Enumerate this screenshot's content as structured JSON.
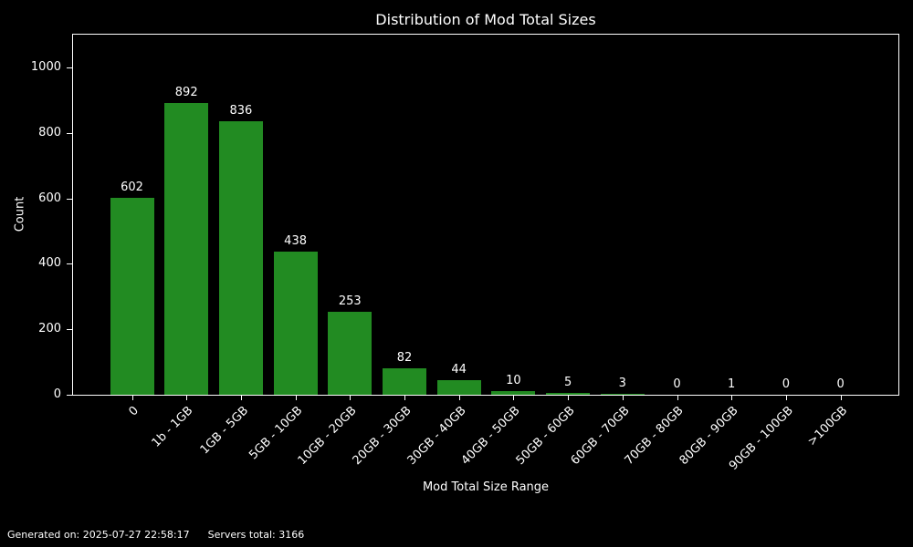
{
  "title": "Distribution of Mod Total Sizes",
  "footer": {
    "generated": "Generated on: 2025-07-27 22:58:17",
    "servers_total": "Servers total: 3166"
  },
  "chart_data": {
    "type": "bar",
    "title": "Distribution of Mod Total Sizes",
    "xlabel": "Mod Total Size Range",
    "ylabel": "Count",
    "categories": [
      "0",
      "1b - 1GB",
      "1GB - 5GB",
      "5GB - 10GB",
      "10GB - 20GB",
      "20GB - 30GB",
      "30GB - 40GB",
      "40GB - 50GB",
      "50GB - 60GB",
      "60GB - 70GB",
      "70GB - 80GB",
      "80GB - 90GB",
      "90GB - 100GB",
      ">100GB"
    ],
    "values": [
      602,
      892,
      836,
      438,
      253,
      82,
      44,
      10,
      5,
      3,
      0,
      1,
      0,
      0
    ],
    "y_ticks": [
      0,
      200,
      400,
      600,
      800,
      1000
    ],
    "ylim": [
      0,
      1100
    ],
    "bar_labels": true,
    "grid": false,
    "legend": null,
    "bar_color": "#228b22",
    "background_color": "#000000",
    "text_color": "#ffffff",
    "spine_color": "#ffffff"
  }
}
